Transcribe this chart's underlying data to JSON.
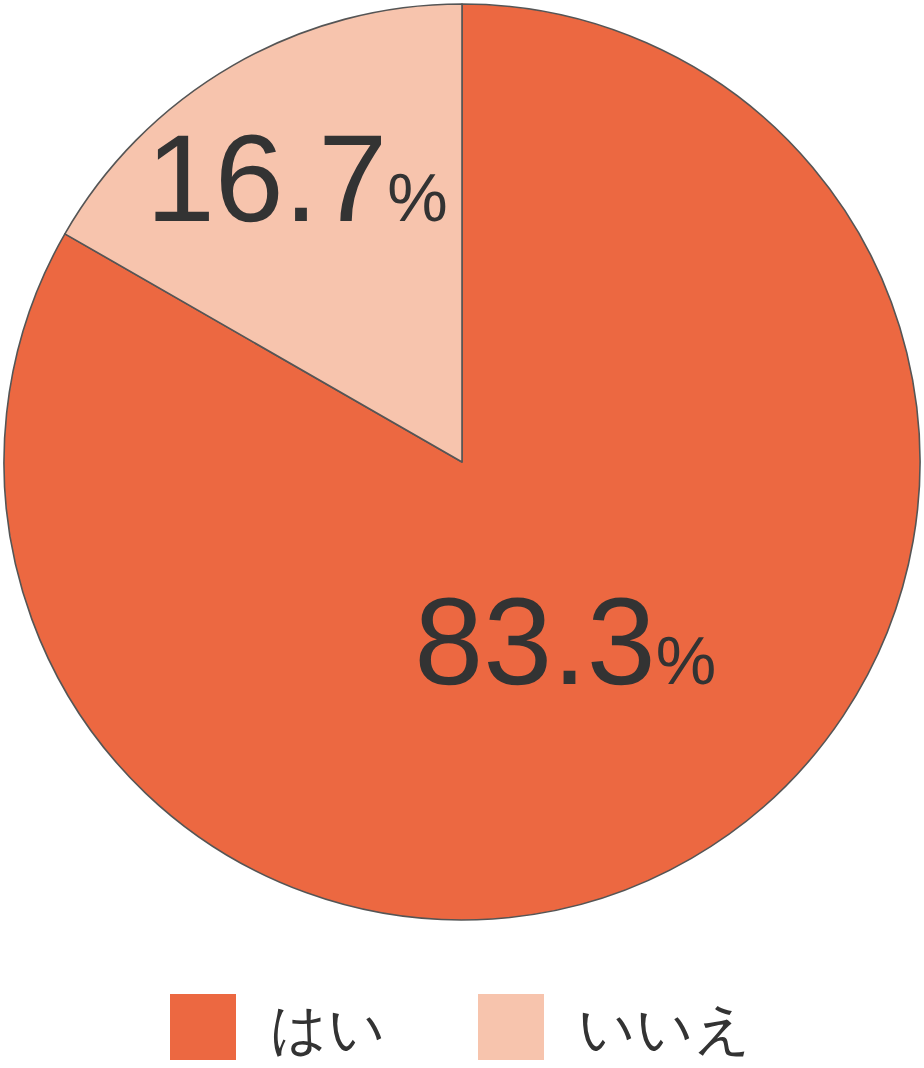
{
  "chart_data": {
    "type": "pie",
    "categories": [
      "はい",
      "いいえ"
    ],
    "values": [
      83.3,
      16.7
    ],
    "colors": [
      "#ec6841",
      "#f7c4ad"
    ],
    "value_labels": [
      "83.3%",
      "16.7%"
    ],
    "legend": "bottom"
  }
}
